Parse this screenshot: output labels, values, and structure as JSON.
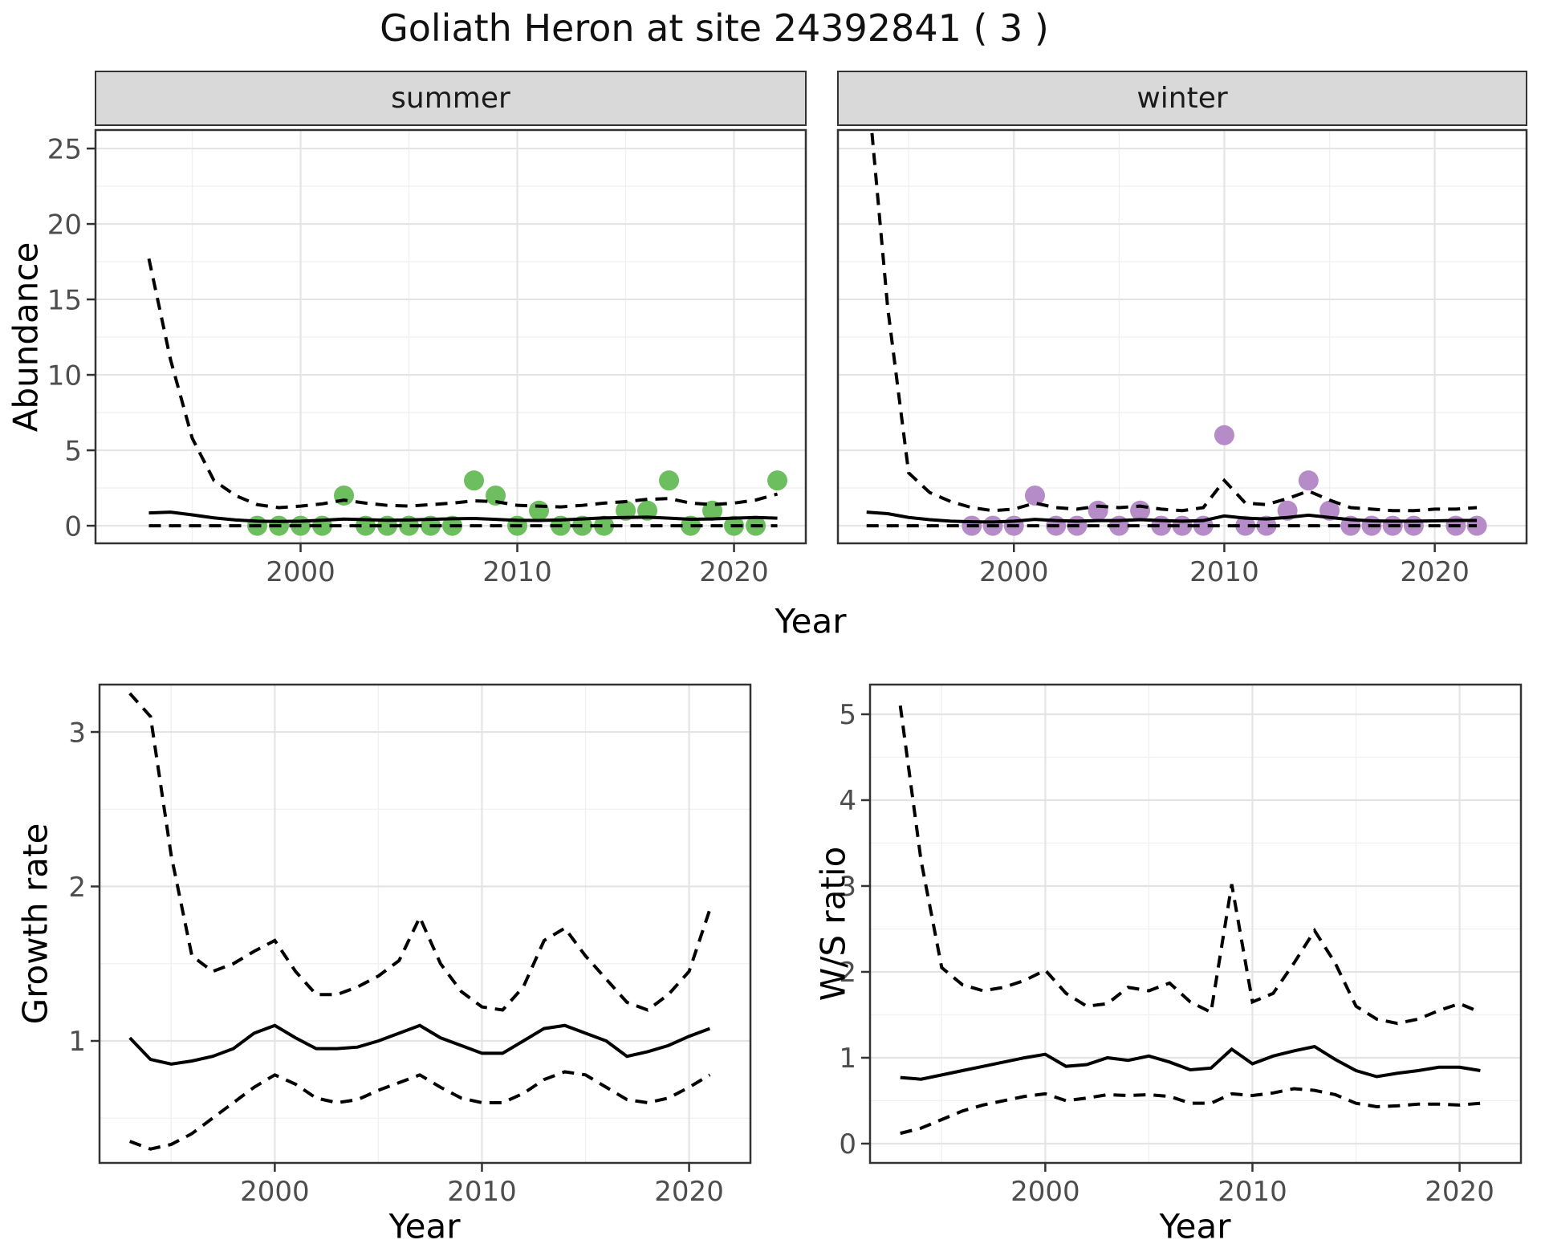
{
  "title": "Goliath Heron at site 24392841 ( 3 )",
  "facets": [
    {
      "label": "summer"
    },
    {
      "label": "winter"
    }
  ],
  "axis_titles": {
    "abundance": "Abundance",
    "year_top": "Year",
    "growth": "Growth rate",
    "ws": "W/S ratio",
    "year_bl": "Year",
    "year_br": "Year"
  },
  "colors": {
    "summer_point": "#6cbe5e",
    "winter_point": "#b58cc8",
    "line": "#000000",
    "grid_major": "#e4e4e4",
    "grid_minor": "#f0f0f0",
    "border": "#333333",
    "tick_text": "#4d4d4d",
    "strip_bg": "#d9d9d9"
  },
  "chart_data": [
    {
      "name": "abundance-summer",
      "type": "line",
      "facet": "summer",
      "xlabel": "Year",
      "ylabel": "Abundance",
      "x": [
        1993,
        1994,
        1995,
        1996,
        1997,
        1998,
        1999,
        2000,
        2001,
        2002,
        2003,
        2004,
        2005,
        2006,
        2007,
        2008,
        2009,
        2010,
        2011,
        2012,
        2013,
        2014,
        2015,
        2016,
        2017,
        2018,
        2019,
        2020,
        2021,
        2022
      ],
      "series": [
        {
          "name": "fit",
          "style": "solid",
          "values": [
            0.85,
            0.9,
            0.72,
            0.52,
            0.38,
            0.3,
            0.28,
            0.3,
            0.36,
            0.44,
            0.4,
            0.36,
            0.38,
            0.42,
            0.46,
            0.48,
            0.42,
            0.36,
            0.35,
            0.38,
            0.45,
            0.52,
            0.55,
            0.57,
            0.5,
            0.43,
            0.45,
            0.5,
            0.55,
            0.5
          ]
        },
        {
          "name": "upper_ci",
          "style": "dashed",
          "values": [
            17.7,
            11.0,
            5.8,
            3.0,
            2.0,
            1.4,
            1.2,
            1.3,
            1.45,
            1.7,
            1.5,
            1.35,
            1.3,
            1.4,
            1.5,
            1.65,
            1.6,
            1.35,
            1.3,
            1.25,
            1.35,
            1.5,
            1.6,
            1.75,
            1.8,
            1.5,
            1.4,
            1.5,
            1.7,
            2.1
          ]
        },
        {
          "name": "lower_ci",
          "style": "dashed",
          "values": [
            0,
            0,
            0,
            0,
            0,
            0,
            0,
            0,
            0,
            0,
            0,
            0,
            0,
            0,
            0,
            0,
            0,
            0,
            0,
            0,
            0,
            0,
            0,
            0,
            0,
            0,
            0,
            0,
            0,
            0
          ]
        }
      ],
      "points": {
        "x": [
          1998,
          1999,
          2000,
          2001,
          2002,
          2003,
          2004,
          2005,
          2006,
          2007,
          2008,
          2009,
          2010,
          2011,
          2012,
          2013,
          2014,
          2015,
          2016,
          2017,
          2018,
          2019,
          2020,
          2021,
          2022
        ],
        "y": [
          0,
          0,
          0,
          0,
          2,
          0,
          0,
          0,
          0,
          0,
          3,
          2,
          0,
          1,
          0,
          0,
          0,
          1,
          1,
          3,
          0,
          1,
          0,
          0,
          3
        ],
        "color": "#6cbe5e"
      },
      "xlim": [
        1990.5,
        2023.35
      ],
      "ylim": [
        -1.22,
        26.28
      ],
      "xticks": [
        2000,
        2010,
        2020
      ],
      "yticks": [
        0,
        5,
        10,
        15,
        20,
        25
      ],
      "xminor": [
        1995,
        2005,
        2015
      ],
      "yminor": [
        2.5,
        7.5,
        12.5,
        17.5,
        22.5
      ],
      "show_y_tick_labels": true
    },
    {
      "name": "abundance-winter",
      "type": "line",
      "facet": "winter",
      "xlabel": "Year",
      "ylabel": "Abundance",
      "x": [
        1993,
        1994,
        1995,
        1996,
        1997,
        1998,
        1999,
        2000,
        2001,
        2002,
        2003,
        2004,
        2005,
        2006,
        2007,
        2008,
        2009,
        2010,
        2011,
        2012,
        2013,
        2014,
        2015,
        2016,
        2017,
        2018,
        2019,
        2020,
        2021,
        2022
      ],
      "series": [
        {
          "name": "fit",
          "style": "solid",
          "values": [
            0.9,
            0.8,
            0.55,
            0.4,
            0.3,
            0.26,
            0.25,
            0.3,
            0.42,
            0.34,
            0.3,
            0.34,
            0.34,
            0.4,
            0.34,
            0.3,
            0.34,
            0.65,
            0.5,
            0.45,
            0.55,
            0.7,
            0.55,
            0.4,
            0.32,
            0.3,
            0.3,
            0.32,
            0.35,
            0.35
          ]
        },
        {
          "name": "upper_ci",
          "style": "dashed",
          "values": [
            30,
            14.5,
            3.5,
            2.2,
            1.6,
            1.2,
            1.0,
            1.1,
            1.5,
            1.2,
            1.1,
            1.3,
            1.2,
            1.3,
            1.1,
            1.0,
            1.2,
            3.0,
            1.5,
            1.4,
            1.8,
            2.3,
            1.7,
            1.2,
            1.1,
            1.0,
            1.0,
            1.1,
            1.1,
            1.2
          ]
        },
        {
          "name": "lower_ci",
          "style": "dashed",
          "values": [
            0,
            0,
            0,
            0,
            0,
            0,
            0,
            0,
            0,
            0,
            0,
            0,
            0,
            0,
            0,
            0,
            0,
            0,
            0,
            0,
            0,
            0,
            0,
            0,
            0,
            0,
            0,
            0,
            0,
            0
          ]
        }
      ],
      "points": {
        "x": [
          1998,
          1999,
          2000,
          2001,
          2002,
          2003,
          2004,
          2005,
          2006,
          2007,
          2008,
          2009,
          2010,
          2011,
          2012,
          2013,
          2014,
          2015,
          2016,
          2017,
          2018,
          2019,
          2021,
          2022
        ],
        "y": [
          0,
          0,
          0,
          2,
          0,
          0,
          1,
          0,
          1,
          0,
          0,
          0,
          6,
          0,
          0,
          1,
          3,
          1,
          0,
          0,
          0,
          0,
          0,
          0
        ],
        "color": "#b58cc8"
      },
      "xlim": [
        1991.6,
        2024.4
      ],
      "ylim": [
        -1.22,
        26.28
      ],
      "xticks": [
        2000,
        2010,
        2020
      ],
      "yticks": [
        0,
        5,
        10,
        15,
        20,
        25
      ],
      "xminor": [
        1995,
        2005,
        2015
      ],
      "yminor": [
        2.5,
        7.5,
        12.5,
        17.5,
        22.5
      ],
      "show_y_tick_labels": false
    },
    {
      "name": "growth-rate",
      "type": "line",
      "xlabel": "Year",
      "ylabel": "Growth rate",
      "x": [
        1993,
        1994,
        1995,
        1996,
        1997,
        1998,
        1999,
        2000,
        2001,
        2002,
        2003,
        2004,
        2005,
        2006,
        2007,
        2008,
        2009,
        2010,
        2011,
        2012,
        2013,
        2014,
        2015,
        2016,
        2017,
        2018,
        2019,
        2020,
        2021
      ],
      "series": [
        {
          "name": "fit",
          "style": "solid",
          "values": [
            1.02,
            0.88,
            0.85,
            0.87,
            0.9,
            0.95,
            1.05,
            1.1,
            1.02,
            0.95,
            0.95,
            0.96,
            1.0,
            1.05,
            1.1,
            1.02,
            0.97,
            0.92,
            0.92,
            1.0,
            1.08,
            1.1,
            1.05,
            1.0,
            0.9,
            0.93,
            0.97,
            1.03,
            1.08
          ]
        },
        {
          "name": "upper_ci",
          "style": "dashed",
          "values": [
            3.25,
            3.1,
            2.2,
            1.55,
            1.45,
            1.5,
            1.58,
            1.65,
            1.45,
            1.3,
            1.3,
            1.35,
            1.42,
            1.52,
            1.8,
            1.5,
            1.32,
            1.22,
            1.2,
            1.35,
            1.65,
            1.73,
            1.55,
            1.4,
            1.25,
            1.2,
            1.3,
            1.45,
            1.85
          ]
        },
        {
          "name": "lower_ci",
          "style": "dashed",
          "values": [
            0.35,
            0.3,
            0.33,
            0.4,
            0.5,
            0.6,
            0.7,
            0.78,
            0.72,
            0.63,
            0.6,
            0.62,
            0.68,
            0.73,
            0.78,
            0.7,
            0.63,
            0.6,
            0.6,
            0.66,
            0.75,
            0.8,
            0.78,
            0.7,
            0.62,
            0.6,
            0.63,
            0.7,
            0.78
          ]
        }
      ],
      "points": null,
      "xlim": [
        1991.5,
        2023.0
      ],
      "ylim": [
        0.205,
        3.312
      ],
      "xticks": [
        2000,
        2010,
        2020
      ],
      "yticks": [
        1,
        2,
        3
      ],
      "xminor": [
        1995,
        2005,
        2015
      ],
      "yminor": [
        0.5,
        1.5,
        2.5
      ],
      "show_y_tick_labels": true
    },
    {
      "name": "ws-ratio",
      "type": "line",
      "xlabel": "Year",
      "ylabel": "W/S ratio",
      "x": [
        1993,
        1994,
        1995,
        1996,
        1997,
        1998,
        1999,
        2000,
        2001,
        2002,
        2003,
        2004,
        2005,
        2006,
        2007,
        2008,
        2009,
        2010,
        2011,
        2012,
        2013,
        2014,
        2015,
        2016,
        2017,
        2018,
        2019,
        2020,
        2021
      ],
      "series": [
        {
          "name": "fit",
          "style": "solid",
          "values": [
            0.77,
            0.75,
            0.8,
            0.85,
            0.9,
            0.95,
            1.0,
            1.04,
            0.9,
            0.92,
            1.0,
            0.97,
            1.02,
            0.95,
            0.86,
            0.88,
            1.1,
            0.93,
            1.02,
            1.08,
            1.13,
            0.98,
            0.85,
            0.78,
            0.82,
            0.85,
            0.89,
            0.89,
            0.85
          ]
        },
        {
          "name": "upper_ci",
          "style": "dashed",
          "values": [
            5.1,
            3.3,
            2.05,
            1.85,
            1.78,
            1.82,
            1.9,
            2.02,
            1.75,
            1.6,
            1.63,
            1.82,
            1.78,
            1.87,
            1.65,
            1.53,
            3.02,
            1.65,
            1.75,
            2.1,
            2.48,
            2.1,
            1.6,
            1.45,
            1.4,
            1.45,
            1.55,
            1.63,
            1.53
          ]
        },
        {
          "name": "lower_ci",
          "style": "dashed",
          "values": [
            0.12,
            0.18,
            0.28,
            0.38,
            0.45,
            0.5,
            0.55,
            0.58,
            0.5,
            0.53,
            0.57,
            0.56,
            0.57,
            0.55,
            0.47,
            0.47,
            0.58,
            0.56,
            0.59,
            0.64,
            0.62,
            0.57,
            0.47,
            0.43,
            0.44,
            0.46,
            0.46,
            0.45,
            0.47
          ]
        }
      ],
      "points": null,
      "xlim": [
        1991.5,
        2023.0
      ],
      "ylim": [
        -0.234,
        5.355
      ],
      "xticks": [
        2000,
        2010,
        2020
      ],
      "yticks": [
        0,
        1,
        2,
        3,
        4,
        5
      ],
      "xminor": [
        1995,
        2005,
        2015
      ],
      "yminor": [
        0.5,
        1.5,
        2.5,
        3.5,
        4.5
      ],
      "show_y_tick_labels": true
    }
  ]
}
